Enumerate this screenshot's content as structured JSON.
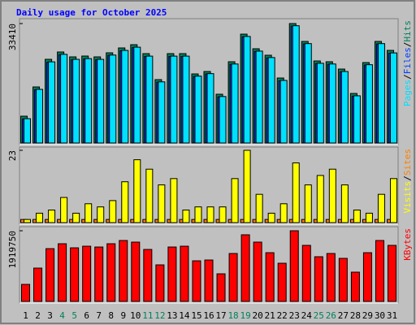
{
  "chart_data": [
    {
      "type": "bar",
      "title": "Daily usage for October 2025",
      "ylim": [
        0,
        33410
      ],
      "yticks": [
        33410
      ],
      "legend_separator": "/",
      "series": [
        {
          "name": "Hits",
          "color": "#00805c",
          "values": [
            7500,
            15680,
            23410,
            25460,
            24090,
            24320,
            24090,
            25230,
            26590,
            27500,
            25000,
            17730,
            25000,
            25000,
            19320,
            20000,
            13640,
            22730,
            30450,
            26360,
            24550,
            18180,
            33410,
            28410,
            22950,
            22730,
            20680,
            13860,
            22500,
            28410,
            25910
          ]
        },
        {
          "name": "Files",
          "color": "#0040ff",
          "values": [
            6700,
            14900,
            22600,
            24700,
            23300,
            23500,
            23300,
            24500,
            25800,
            26700,
            24200,
            17000,
            24200,
            24200,
            18600,
            19300,
            12900,
            22000,
            29700,
            25600,
            23800,
            17400,
            32700,
            27700,
            22200,
            22000,
            19900,
            13100,
            21800,
            27700,
            25100
          ]
        },
        {
          "name": "Pages",
          "color": "#00e0ff",
          "values": [
            6800,
            15000,
            22700,
            24800,
            23400,
            23600,
            23400,
            24600,
            25900,
            26800,
            24300,
            17100,
            24300,
            24300,
            18700,
            19400,
            13000,
            22100,
            29800,
            25700,
            23900,
            17500,
            32800,
            27800,
            22300,
            22100,
            20000,
            13200,
            21900,
            27800,
            25200
          ]
        }
      ]
    },
    {
      "type": "bar",
      "ylim": [
        0,
        23
      ],
      "yticks": [
        23
      ],
      "legend_separator": "/",
      "series": [
        {
          "name": "Sites",
          "color": "#ff8000",
          "values": [
            1,
            1,
            1,
            1,
            1,
            1,
            1,
            1,
            1,
            1,
            1,
            1,
            1,
            1,
            1,
            1,
            1,
            1,
            1,
            1,
            1,
            1,
            1,
            1,
            1,
            1,
            1,
            1,
            1,
            1,
            1
          ]
        },
        {
          "name": "Visits",
          "color": "#ffff00",
          "values": [
            1,
            3,
            4,
            8,
            3,
            6,
            5,
            7,
            13,
            20,
            17,
            12,
            14,
            4,
            5,
            5,
            5,
            14,
            23,
            9,
            3,
            6,
            19,
            12,
            15,
            17,
            12,
            4,
            3,
            9,
            14
          ]
        }
      ]
    },
    {
      "type": "bar",
      "ylim": [
        0,
        1919750
      ],
      "yticks": [
        1919750
      ],
      "categories": [
        "1",
        "2",
        "3",
        "4",
        "5",
        "6",
        "7",
        "8",
        "9",
        "10",
        "11",
        "12",
        "13",
        "14",
        "15",
        "16",
        "17",
        "18",
        "19",
        "20",
        "21",
        "22",
        "23",
        "24",
        "25",
        "26",
        "27",
        "28",
        "29",
        "30",
        "31"
      ],
      "category_colors": [
        "#000000",
        "#000000",
        "#000000",
        "#00805c",
        "#00805c",
        "#000000",
        "#000000",
        "#000000",
        "#000000",
        "#000000",
        "#00805c",
        "#00805c",
        "#000000",
        "#000000",
        "#000000",
        "#000000",
        "#000000",
        "#00805c",
        "#00805c",
        "#000000",
        "#000000",
        "#000000",
        "#000000",
        "#000000",
        "#00805c",
        "#00805c",
        "#000000",
        "#000000",
        "#000000",
        "#000000",
        "#000000"
      ],
      "series": [
        {
          "name": "KBytes",
          "color": "#ff0000",
          "values": [
            463000,
            905000,
            1434000,
            1567000,
            1456000,
            1500000,
            1478000,
            1567000,
            1655000,
            1611000,
            1412000,
            993000,
            1478000,
            1500000,
            1103000,
            1125000,
            750000,
            1302000,
            1810000,
            1611000,
            1324000,
            1037000,
            1919750,
            1523000,
            1214000,
            1302000,
            1170000,
            795000,
            1324000,
            1655000,
            1523000
          ]
        }
      ]
    }
  ]
}
